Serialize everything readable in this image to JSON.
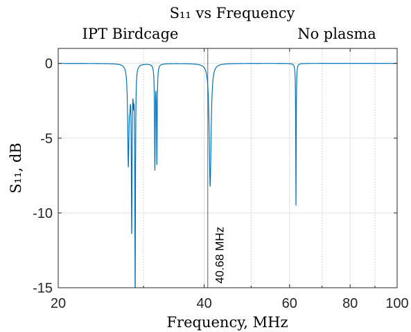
{
  "chart_data": {
    "type": "line",
    "title": "S₁₁ vs Frequency",
    "subtitle_left": "IPT Birdcage",
    "subtitle_right": "No plasma",
    "xlabel": "Frequency, MHz",
    "ylabel": "S₁₁, dB",
    "xscale": "log",
    "xlim": [
      20,
      100
    ],
    "ylim": [
      -15,
      1
    ],
    "xticks": [
      20,
      40,
      60,
      80,
      100
    ],
    "xtick_labels": [
      "20",
      "40",
      "60",
      "80",
      "100"
    ],
    "yticks": [
      0,
      -5,
      -10,
      -15
    ],
    "ytick_labels": [
      "0",
      "-5",
      "-10",
      "-15"
    ],
    "grid": true,
    "marker_line": {
      "x": 40.68,
      "label": "40.68 MHz",
      "color": "#808080"
    },
    "series": [
      {
        "color": "#0072BD",
        "resonances": [
          {
            "f": 27.9,
            "depth": -6.5,
            "width": 0.1
          },
          {
            "f": 28.1,
            "depth": -1.4,
            "width": 0.08
          },
          {
            "f": 28.35,
            "depth": -10.7,
            "width": 0.06
          },
          {
            "f": 28.6,
            "depth": -1.6,
            "width": 0.06
          },
          {
            "f": 28.82,
            "depth": -15.2,
            "width": 0.05
          },
          {
            "f": 31.65,
            "depth": -6.9,
            "width": 0.06
          },
          {
            "f": 31.95,
            "depth": -6.5,
            "width": 0.06
          },
          {
            "f": 41.15,
            "depth": -8.2,
            "width": 0.22
          },
          {
            "f": 61.85,
            "depth": -9.5,
            "width": 0.08
          }
        ]
      }
    ]
  }
}
